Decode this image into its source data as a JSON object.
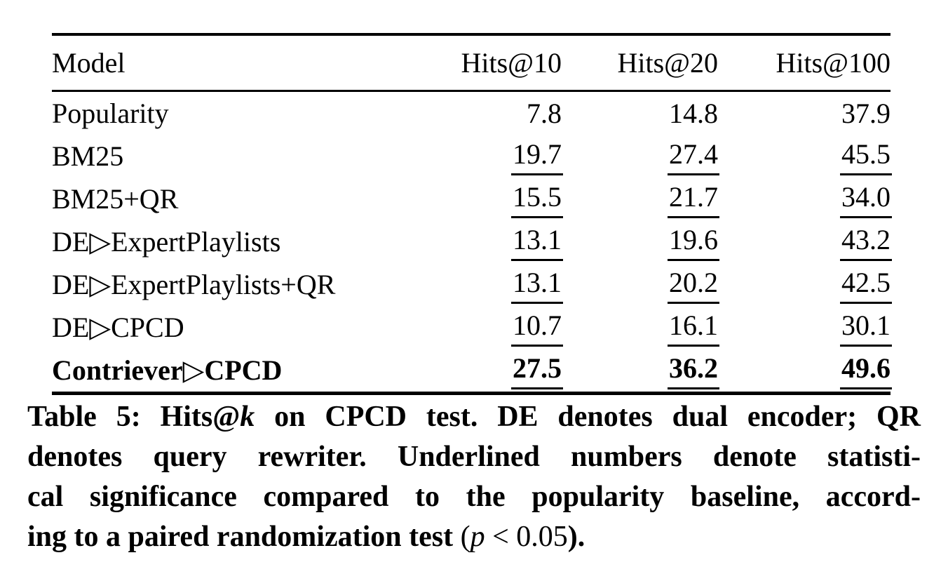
{
  "page": {
    "background": "#ffffff",
    "text_color": "#000000",
    "rule_color": "#000000"
  },
  "table": {
    "columns": [
      {
        "label": "Model",
        "align": "left"
      },
      {
        "label": "Hits@10",
        "align": "right"
      },
      {
        "label": "Hits@20",
        "align": "right"
      },
      {
        "label": "Hits@100",
        "align": "right"
      }
    ],
    "rows": [
      {
        "model": "Popularity",
        "values": [
          "7.8",
          "14.8",
          "37.9"
        ],
        "underline": false,
        "bold": false
      },
      {
        "model": "BM25",
        "values": [
          "19.7",
          "27.4",
          "45.5"
        ],
        "underline": true,
        "bold": false
      },
      {
        "model": "BM25+QR",
        "values": [
          "15.5",
          "21.7",
          "34.0"
        ],
        "underline": true,
        "bold": false
      },
      {
        "model": "DE▷ExpertPlaylists",
        "values": [
          "13.1",
          "19.6",
          "43.2"
        ],
        "underline": true,
        "bold": false
      },
      {
        "model": "DE▷ExpertPlaylists+QR",
        "values": [
          "13.1",
          "20.2",
          "42.5"
        ],
        "underline": true,
        "bold": false
      },
      {
        "model": "DE▷CPCD",
        "values": [
          "10.7",
          "16.1",
          "30.1"
        ],
        "underline": true,
        "bold": false
      },
      {
        "model": "Contriever▷CPCD",
        "values": [
          "27.5",
          "36.2",
          "49.6"
        ],
        "underline": true,
        "bold": true
      }
    ]
  },
  "caption": {
    "lines": [
      {
        "justify": true,
        "segments": [
          {
            "text": "Table 5: Hits@"
          },
          {
            "text": "k",
            "italic": true
          },
          {
            "text": " on CPCD test. DE denotes dual encoder; QR"
          }
        ]
      },
      {
        "justify": true,
        "segments": [
          {
            "text": "denotes query rewriter. Underlined numbers denote statisti-"
          }
        ]
      },
      {
        "justify": true,
        "segments": [
          {
            "text": "cal significance compared to the popularity baseline, accord-"
          }
        ]
      },
      {
        "justify": false,
        "segments": [
          {
            "text": "ing to a paired randomization test "
          },
          {
            "text": "(",
            "normal": true
          },
          {
            "text": "p",
            "italic": true,
            "normal": true
          },
          {
            "text": " < 0.05",
            "normal": true
          },
          {
            "text": ")."
          }
        ]
      }
    ]
  }
}
